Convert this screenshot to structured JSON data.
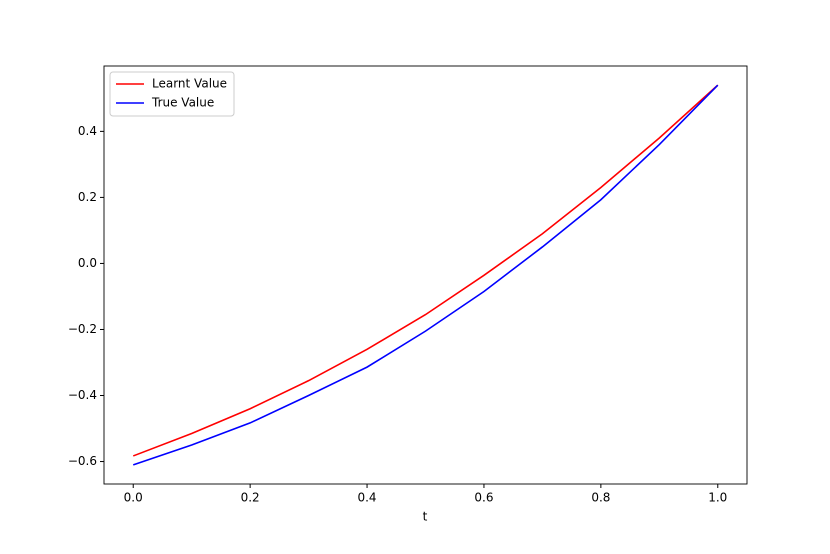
{
  "chart_data": {
    "type": "line",
    "xlabel": "t",
    "x": [
      0,
      0.1,
      0.2,
      0.3,
      0.4,
      0.5,
      0.6,
      0.7,
      0.8,
      0.9,
      1.0
    ],
    "series": [
      {
        "name": "Learnt Value",
        "color": "#ff0000",
        "values": [
          -0.583,
          -0.515,
          -0.44,
          -0.355,
          -0.26,
          -0.155,
          -0.036,
          0.09,
          0.23,
          0.38,
          0.54
        ]
      },
      {
        "name": "True Value",
        "color": "#0000ff",
        "values": [
          -0.61,
          -0.55,
          -0.483,
          -0.4,
          -0.314,
          -0.205,
          -0.085,
          0.05,
          0.193,
          0.36,
          0.54
        ]
      }
    ],
    "xlim": [
      -0.05,
      1.05
    ],
    "xticks": [
      {
        "value": 0,
        "label": "0.0"
      },
      0.2,
      0.4,
      0.6,
      0.8,
      {
        "value": 1,
        "label": "1.0"
      }
    ],
    "ylim": [
      -0.668,
      0.598
    ],
    "yticks": [
      {
        "value": -0.6,
        "label": "−0.6"
      },
      {
        "value": -0.4,
        "label": "−0.4"
      },
      {
        "value": -0.2,
        "label": "−0.2"
      },
      {
        "value": 0,
        "label": "0.0"
      },
      0.2,
      0.4
    ],
    "legend": "upper left",
    "grid": false
  }
}
